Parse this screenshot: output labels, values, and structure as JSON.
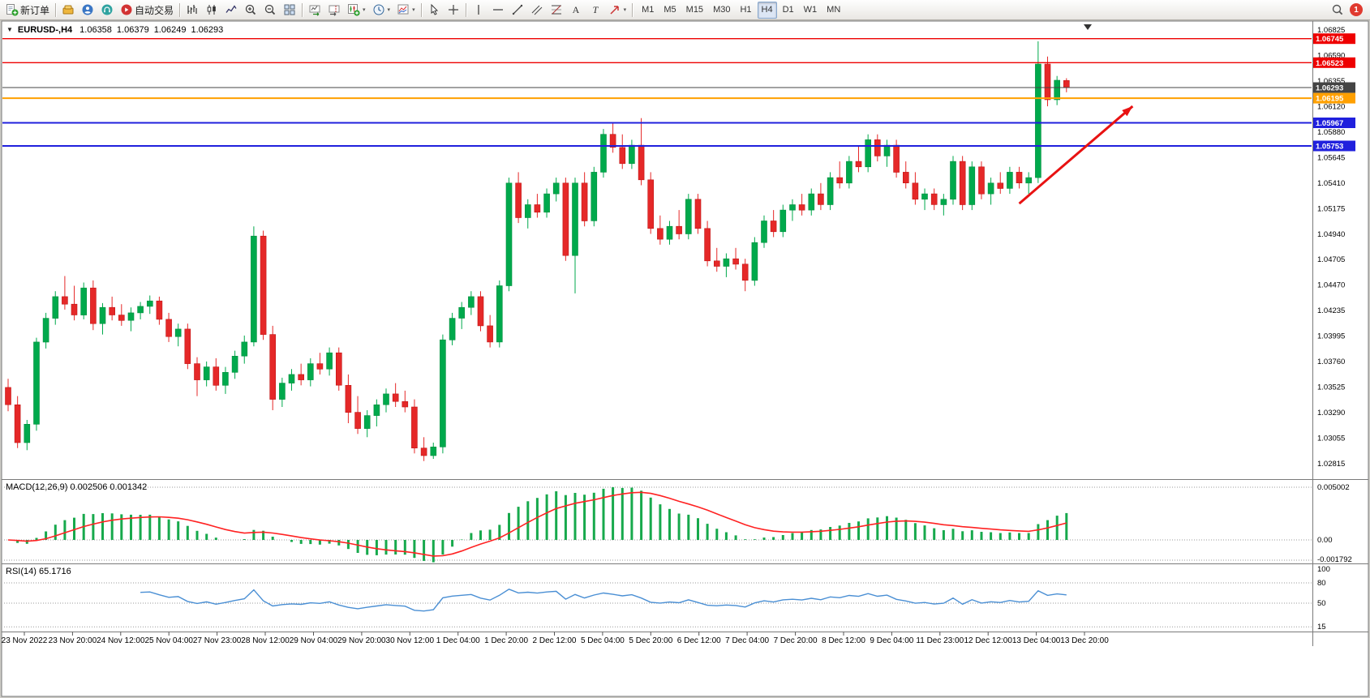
{
  "app": {
    "name": "MetaTrader 4"
  },
  "toolbar": {
    "items": [
      {
        "name": "new-order-button",
        "icon": "new-order",
        "label": "新订单"
      },
      {
        "name": "sep"
      },
      {
        "name": "mql5-market-button",
        "icon": "gold"
      },
      {
        "name": "community-button",
        "icon": "person"
      },
      {
        "name": "support-button",
        "icon": "headset"
      },
      {
        "name": "autotrading-button",
        "icon": "autotrade",
        "label": "自动交易"
      },
      {
        "name": "sep"
      },
      {
        "name": "bar-chart-button",
        "icon": "bar-chart"
      },
      {
        "name": "candlestick-chart-button",
        "icon": "candle-chart"
      },
      {
        "name": "line-chart-button",
        "icon": "line-chart"
      },
      {
        "name": "zoom-in-button",
        "icon": "zoom-in"
      },
      {
        "name": "zoom-out-button",
        "icon": "zoom-out"
      },
      {
        "name": "tile-windows-button",
        "icon": "tile"
      },
      {
        "name": "sep"
      },
      {
        "name": "auto-scroll-button",
        "icon": "auto-scroll"
      },
      {
        "name": "chart-shift-button",
        "icon": "chart-shift"
      },
      {
        "name": "new-chart-button",
        "icon": "new-chart",
        "dropdown": true
      },
      {
        "name": "profiles-button",
        "icon": "clock",
        "dropdown": true
      },
      {
        "name": "indicators-button",
        "icon": "template",
        "dropdown": true
      },
      {
        "name": "sep"
      },
      {
        "name": "cursor-button",
        "icon": "cursor"
      },
      {
        "name": "crosshair-button",
        "icon": "crosshair"
      },
      {
        "name": "sep"
      },
      {
        "name": "vertical-line-button",
        "icon": "vline"
      },
      {
        "name": "horizontal-line-button",
        "icon": "hline"
      },
      {
        "name": "trendline-button",
        "icon": "trendline"
      },
      {
        "name": "equidistant-channel-button",
        "icon": "channel"
      },
      {
        "name": "fibonacci-button",
        "icon": "fibo"
      },
      {
        "name": "text-button",
        "icon": "text"
      },
      {
        "name": "text-label-button",
        "icon": "label"
      },
      {
        "name": "arrow-tools-button",
        "icon": "arrows",
        "dropdown": true
      },
      {
        "name": "sep"
      }
    ],
    "timeframes": {
      "labels": [
        "M1",
        "M5",
        "M15",
        "M30",
        "H1",
        "H4",
        "D1",
        "W1",
        "MN"
      ],
      "active": "H4"
    },
    "notifications": {
      "count": "1"
    }
  },
  "chart": {
    "header": {
      "collapse_glyph": "▼",
      "symbol": "EURUSD-,H4",
      "open": "1.06358",
      "high": "1.06379",
      "low": "1.06249",
      "close": "1.06293"
    }
  },
  "indicators": {
    "macd": {
      "label": "MACD(12,26,9) 0.002506 0.001342",
      "name": "MACD",
      "params": [
        12,
        26,
        9
      ],
      "values": [
        "0.002506",
        "0.001342"
      ],
      "scale": [
        "0.005002",
        "0.00",
        "-0.001792"
      ]
    },
    "rsi": {
      "label": "RSI(14) 65.1716",
      "name": "RSI",
      "period": 14,
      "value": "65.1716",
      "scale": [
        "100",
        "80",
        "50",
        "15"
      ]
    }
  },
  "chart_data": {
    "type": "candlestick",
    "symbol": "EURUSD-",
    "timeframe": "H4",
    "price_axis": {
      "top_price": 1.06825,
      "bottom_price": 1.02815,
      "labels": [
        "1.06825",
        "1.06590",
        "1.06355",
        "1.06120",
        "1.05880",
        "1.05645",
        "1.05410",
        "1.05175",
        "1.04940",
        "1.04705",
        "1.04470",
        "1.04235",
        "1.03995",
        "1.03760",
        "1.03525",
        "1.03290",
        "1.03055",
        "1.02815"
      ]
    },
    "time_axis": {
      "labels": [
        "23 Nov 2022",
        "23 Nov 20:00",
        "24 Nov 12:00",
        "25 Nov 04:00",
        "27 Nov 23:00",
        "28 Nov 12:00",
        "29 Nov 04:00",
        "29 Nov 20:00",
        "30 Nov 12:00",
        "1 Dec 04:00",
        "1 Dec 20:00",
        "2 Dec 12:00",
        "5 Dec 04:00",
        "5 Dec 20:00",
        "6 Dec 12:00",
        "7 Dec 04:00",
        "7 Dec 20:00",
        "8 Dec 12:00",
        "9 Dec 04:00",
        "11 Dec 23:00",
        "12 Dec 12:00",
        "13 Dec 04:00",
        "13 Dec 20:00"
      ]
    },
    "ohlc": [
      [
        1.0352,
        1.036,
        1.033,
        1.0336
      ],
      [
        1.0336,
        1.0344,
        1.0296,
        1.0301
      ],
      [
        1.0301,
        1.0322,
        1.0294,
        1.0318
      ],
      [
        1.0318,
        1.0398,
        1.0312,
        1.0394
      ],
      [
        1.0394,
        1.0421,
        1.0388,
        1.0416
      ],
      [
        1.0416,
        1.0441,
        1.041,
        1.0436
      ],
      [
        1.0436,
        1.0455,
        1.0424,
        1.0429
      ],
      [
        1.0429,
        1.0446,
        1.0414,
        1.0419
      ],
      [
        1.0419,
        1.0449,
        1.0415,
        1.0444
      ],
      [
        1.0444,
        1.0451,
        1.0405,
        1.0411
      ],
      [
        1.0411,
        1.043,
        1.0401,
        1.0426
      ],
      [
        1.0426,
        1.0436,
        1.0414,
        1.0419
      ],
      [
        1.0419,
        1.0429,
        1.0409,
        1.0414
      ],
      [
        1.0414,
        1.0426,
        1.0404,
        1.0421
      ],
      [
        1.0421,
        1.0431,
        1.0415,
        1.0427
      ],
      [
        1.0427,
        1.0437,
        1.042,
        1.0432
      ],
      [
        1.0432,
        1.0436,
        1.041,
        1.0415
      ],
      [
        1.0415,
        1.0421,
        1.0394,
        1.0399
      ],
      [
        1.0399,
        1.0411,
        1.039,
        1.0406
      ],
      [
        1.0406,
        1.0411,
        1.0369,
        1.0374
      ],
      [
        1.0374,
        1.038,
        1.0344,
        1.0359
      ],
      [
        1.0359,
        1.0376,
        1.0353,
        1.0371
      ],
      [
        1.0371,
        1.0379,
        1.0349,
        1.0354
      ],
      [
        1.0354,
        1.0371,
        1.0346,
        1.0366
      ],
      [
        1.0366,
        1.0386,
        1.036,
        1.0381
      ],
      [
        1.0381,
        1.04,
        1.0374,
        1.0394
      ],
      [
        1.0394,
        1.0501,
        1.039,
        1.0492
      ],
      [
        1.0492,
        1.0497,
        1.0396,
        1.0401
      ],
      [
        1.0401,
        1.0409,
        1.0331,
        1.0341
      ],
      [
        1.0341,
        1.0361,
        1.0334,
        1.0356
      ],
      [
        1.0356,
        1.0369,
        1.0349,
        1.0364
      ],
      [
        1.0364,
        1.0374,
        1.0354,
        1.0359
      ],
      [
        1.0359,
        1.0379,
        1.0353,
        1.0374
      ],
      [
        1.0374,
        1.0384,
        1.0364,
        1.0369
      ],
      [
        1.0369,
        1.0389,
        1.0363,
        1.0384
      ],
      [
        1.0384,
        1.0389,
        1.0349,
        1.0354
      ],
      [
        1.0354,
        1.0364,
        1.0319,
        1.0329
      ],
      [
        1.0329,
        1.0344,
        1.0309,
        1.0314
      ],
      [
        1.0314,
        1.0331,
        1.0306,
        1.0326
      ],
      [
        1.0326,
        1.0341,
        1.0316,
        1.0336
      ],
      [
        1.0336,
        1.0351,
        1.0329,
        1.0346
      ],
      [
        1.0346,
        1.0356,
        1.0334,
        1.0339
      ],
      [
        1.0339,
        1.0349,
        1.0329,
        1.0334
      ],
      [
        1.0334,
        1.0341,
        1.0291,
        1.0296
      ],
      [
        1.0296,
        1.0306,
        1.0284,
        1.0289
      ],
      [
        1.0289,
        1.0301,
        1.0286,
        1.0297
      ],
      [
        1.0297,
        1.0401,
        1.0291,
        1.0396
      ],
      [
        1.0396,
        1.0421,
        1.0391,
        1.0416
      ],
      [
        1.0416,
        1.0431,
        1.0406,
        1.0426
      ],
      [
        1.0426,
        1.0441,
        1.0419,
        1.0436
      ],
      [
        1.0436,
        1.0441,
        1.0404,
        1.0409
      ],
      [
        1.0409,
        1.0419,
        1.0389,
        1.0394
      ],
      [
        1.0394,
        1.0451,
        1.0389,
        1.0446
      ],
      [
        1.0446,
        1.0546,
        1.0441,
        1.0541
      ],
      [
        1.0541,
        1.0551,
        1.0504,
        1.0509
      ],
      [
        1.0509,
        1.0526,
        1.0499,
        1.0521
      ],
      [
        1.0521,
        1.0531,
        1.0509,
        1.0514
      ],
      [
        1.0514,
        1.0536,
        1.0509,
        1.0531
      ],
      [
        1.0531,
        1.0546,
        1.0524,
        1.0541
      ],
      [
        1.0541,
        1.0546,
        1.0469,
        1.0474
      ],
      [
        1.0474,
        1.0546,
        1.0439,
        1.0541
      ],
      [
        1.0541,
        1.0551,
        1.0501,
        1.0506
      ],
      [
        1.0506,
        1.0556,
        1.0501,
        1.0551
      ],
      [
        1.0551,
        1.0591,
        1.0546,
        1.0586
      ],
      [
        1.0586,
        1.0596,
        1.0569,
        1.0574
      ],
      [
        1.0574,
        1.0586,
        1.0554,
        1.0559
      ],
      [
        1.0559,
        1.0581,
        1.0554,
        1.0576
      ],
      [
        1.0576,
        1.0601,
        1.0539,
        1.0544
      ],
      [
        1.0544,
        1.0551,
        1.0494,
        1.0499
      ],
      [
        1.0499,
        1.0511,
        1.0484,
        1.0489
      ],
      [
        1.0489,
        1.0506,
        1.0484,
        1.0501
      ],
      [
        1.0501,
        1.0516,
        1.0489,
        1.0494
      ],
      [
        1.0494,
        1.0531,
        1.0489,
        1.0526
      ],
      [
        1.0526,
        1.0531,
        1.0494,
        1.0499
      ],
      [
        1.0499,
        1.0506,
        1.0464,
        1.0469
      ],
      [
        1.0469,
        1.0481,
        1.0459,
        1.0464
      ],
      [
        1.0464,
        1.0476,
        1.0454,
        1.0471
      ],
      [
        1.0471,
        1.0481,
        1.0461,
        1.0466
      ],
      [
        1.0466,
        1.0471,
        1.0441,
        1.0451
      ],
      [
        1.0451,
        1.0491,
        1.0446,
        1.0486
      ],
      [
        1.0486,
        1.0511,
        1.0481,
        1.0506
      ],
      [
        1.0506,
        1.0516,
        1.0491,
        1.0496
      ],
      [
        1.0496,
        1.0521,
        1.0491,
        1.0516
      ],
      [
        1.0516,
        1.0526,
        1.0506,
        1.0521
      ],
      [
        1.0521,
        1.0531,
        1.0511,
        1.0516
      ],
      [
        1.0516,
        1.0536,
        1.0511,
        1.0531
      ],
      [
        1.0531,
        1.0541,
        1.0516,
        1.0521
      ],
      [
        1.0521,
        1.0551,
        1.0516,
        1.0546
      ],
      [
        1.0546,
        1.0561,
        1.0536,
        1.0541
      ],
      [
        1.0541,
        1.0566,
        1.0536,
        1.0561
      ],
      [
        1.0561,
        1.0576,
        1.0551,
        1.0556
      ],
      [
        1.0556,
        1.0586,
        1.0551,
        1.0581
      ],
      [
        1.0581,
        1.0586,
        1.0561,
        1.0566
      ],
      [
        1.0566,
        1.0581,
        1.0556,
        1.0576
      ],
      [
        1.0576,
        1.0581,
        1.0546,
        1.0551
      ],
      [
        1.0551,
        1.0561,
        1.0536,
        1.0541
      ],
      [
        1.0541,
        1.0551,
        1.0521,
        1.0526
      ],
      [
        1.0526,
        1.0536,
        1.0516,
        1.0531
      ],
      [
        1.0531,
        1.0536,
        1.0516,
        1.0521
      ],
      [
        1.0521,
        1.0531,
        1.0511,
        1.0526
      ],
      [
        1.0526,
        1.0566,
        1.0521,
        1.0561
      ],
      [
        1.0561,
        1.0566,
        1.0516,
        1.0521
      ],
      [
        1.0521,
        1.0561,
        1.0516,
        1.0556
      ],
      [
        1.0556,
        1.0561,
        1.0526,
        1.0531
      ],
      [
        1.0531,
        1.0546,
        1.0521,
        1.0541
      ],
      [
        1.0541,
        1.0551,
        1.0531,
        1.0536
      ],
      [
        1.0536,
        1.0556,
        1.0531,
        1.0551
      ],
      [
        1.0551,
        1.0556,
        1.0536,
        1.0541
      ],
      [
        1.0541,
        1.0551,
        1.0531,
        1.0546
      ],
      [
        1.0546,
        1.0672,
        1.0541,
        1.0651
      ],
      [
        1.0651,
        1.0658,
        1.0612,
        1.0618
      ],
      [
        1.0618,
        1.064,
        1.0613,
        1.0636
      ],
      [
        1.06358,
        1.06379,
        1.06249,
        1.06293
      ]
    ],
    "levels": [
      {
        "price": 1.06745,
        "color": "#EE0000",
        "width": 1.4,
        "tag": "1.06745"
      },
      {
        "price": 1.06523,
        "color": "#EE0000",
        "width": 1.4,
        "tag": "1.06523"
      },
      {
        "price": 1.06195,
        "color": "#FFA000",
        "width": 2,
        "tag": "1.06195"
      },
      {
        "price": 1.05967,
        "color": "#2020DD",
        "width": 2,
        "tag": "1.05967"
      },
      {
        "price": 1.05753,
        "color": "#2020DD",
        "width": 2,
        "tag": "1.05753"
      }
    ],
    "current_price": {
      "price": 1.06293,
      "tag": "1.06293",
      "color": "#444444"
    },
    "trend_arrow": {
      "from_index": 107,
      "from_price": 1.0522,
      "to_index": 119,
      "to_price": 1.0612,
      "color": "#E81212"
    },
    "colors": {
      "up": "#00A94C",
      "up_stroke": "#008F3E",
      "down": "#E52828",
      "down_stroke": "#C21414",
      "macd_bar": "#17A94C",
      "macd_signal": "#FF2222",
      "rsi_line": "#4A8FD4"
    }
  }
}
